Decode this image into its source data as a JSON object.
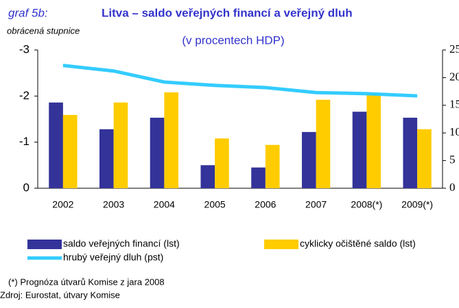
{
  "chart_data": {
    "type": "bar",
    "label": "graf 5b:",
    "title": "Litva – saldo veřejných financí a veřejný dluh",
    "subtitle": "(v procentech HDP)",
    "y_axis_note": "obrácená stupnice",
    "categories": [
      "2002",
      "2003",
      "2004",
      "2005",
      "2006",
      "2007",
      "2008(*)",
      "2009(*)"
    ],
    "series": [
      {
        "name": "saldo veřejných financí (lst)",
        "color": "#333399",
        "type": "bar",
        "values": [
          -1.86,
          -1.28,
          -1.53,
          -0.5,
          -0.45,
          -1.22,
          -1.66,
          -1.53
        ]
      },
      {
        "name": "cyklicky očištěné saldo (lst)",
        "color": "#ffcc00",
        "type": "bar",
        "values": [
          -1.59,
          -1.86,
          -2.08,
          -1.08,
          -0.94,
          -1.92,
          -2.04,
          -1.28
        ]
      },
      {
        "name": "hrubý veřejný dluh (pst)",
        "color": "#33ccff",
        "type": "line",
        "axis": "y2",
        "values": [
          22.2,
          21.2,
          19.2,
          18.6,
          18.2,
          17.3,
          17.1,
          16.7
        ]
      }
    ],
    "ylim": [
      0,
      -3
    ],
    "yticks": [
      0,
      -1,
      -2,
      -3
    ],
    "y2lim": [
      0,
      25
    ],
    "y2ticks": [
      0,
      5,
      10,
      15,
      20,
      25
    ],
    "notes": [
      "(*) Prognóza útvarů Komise z jara 2008",
      "Zdroj: Eurostat, útvary Komise"
    ]
  }
}
